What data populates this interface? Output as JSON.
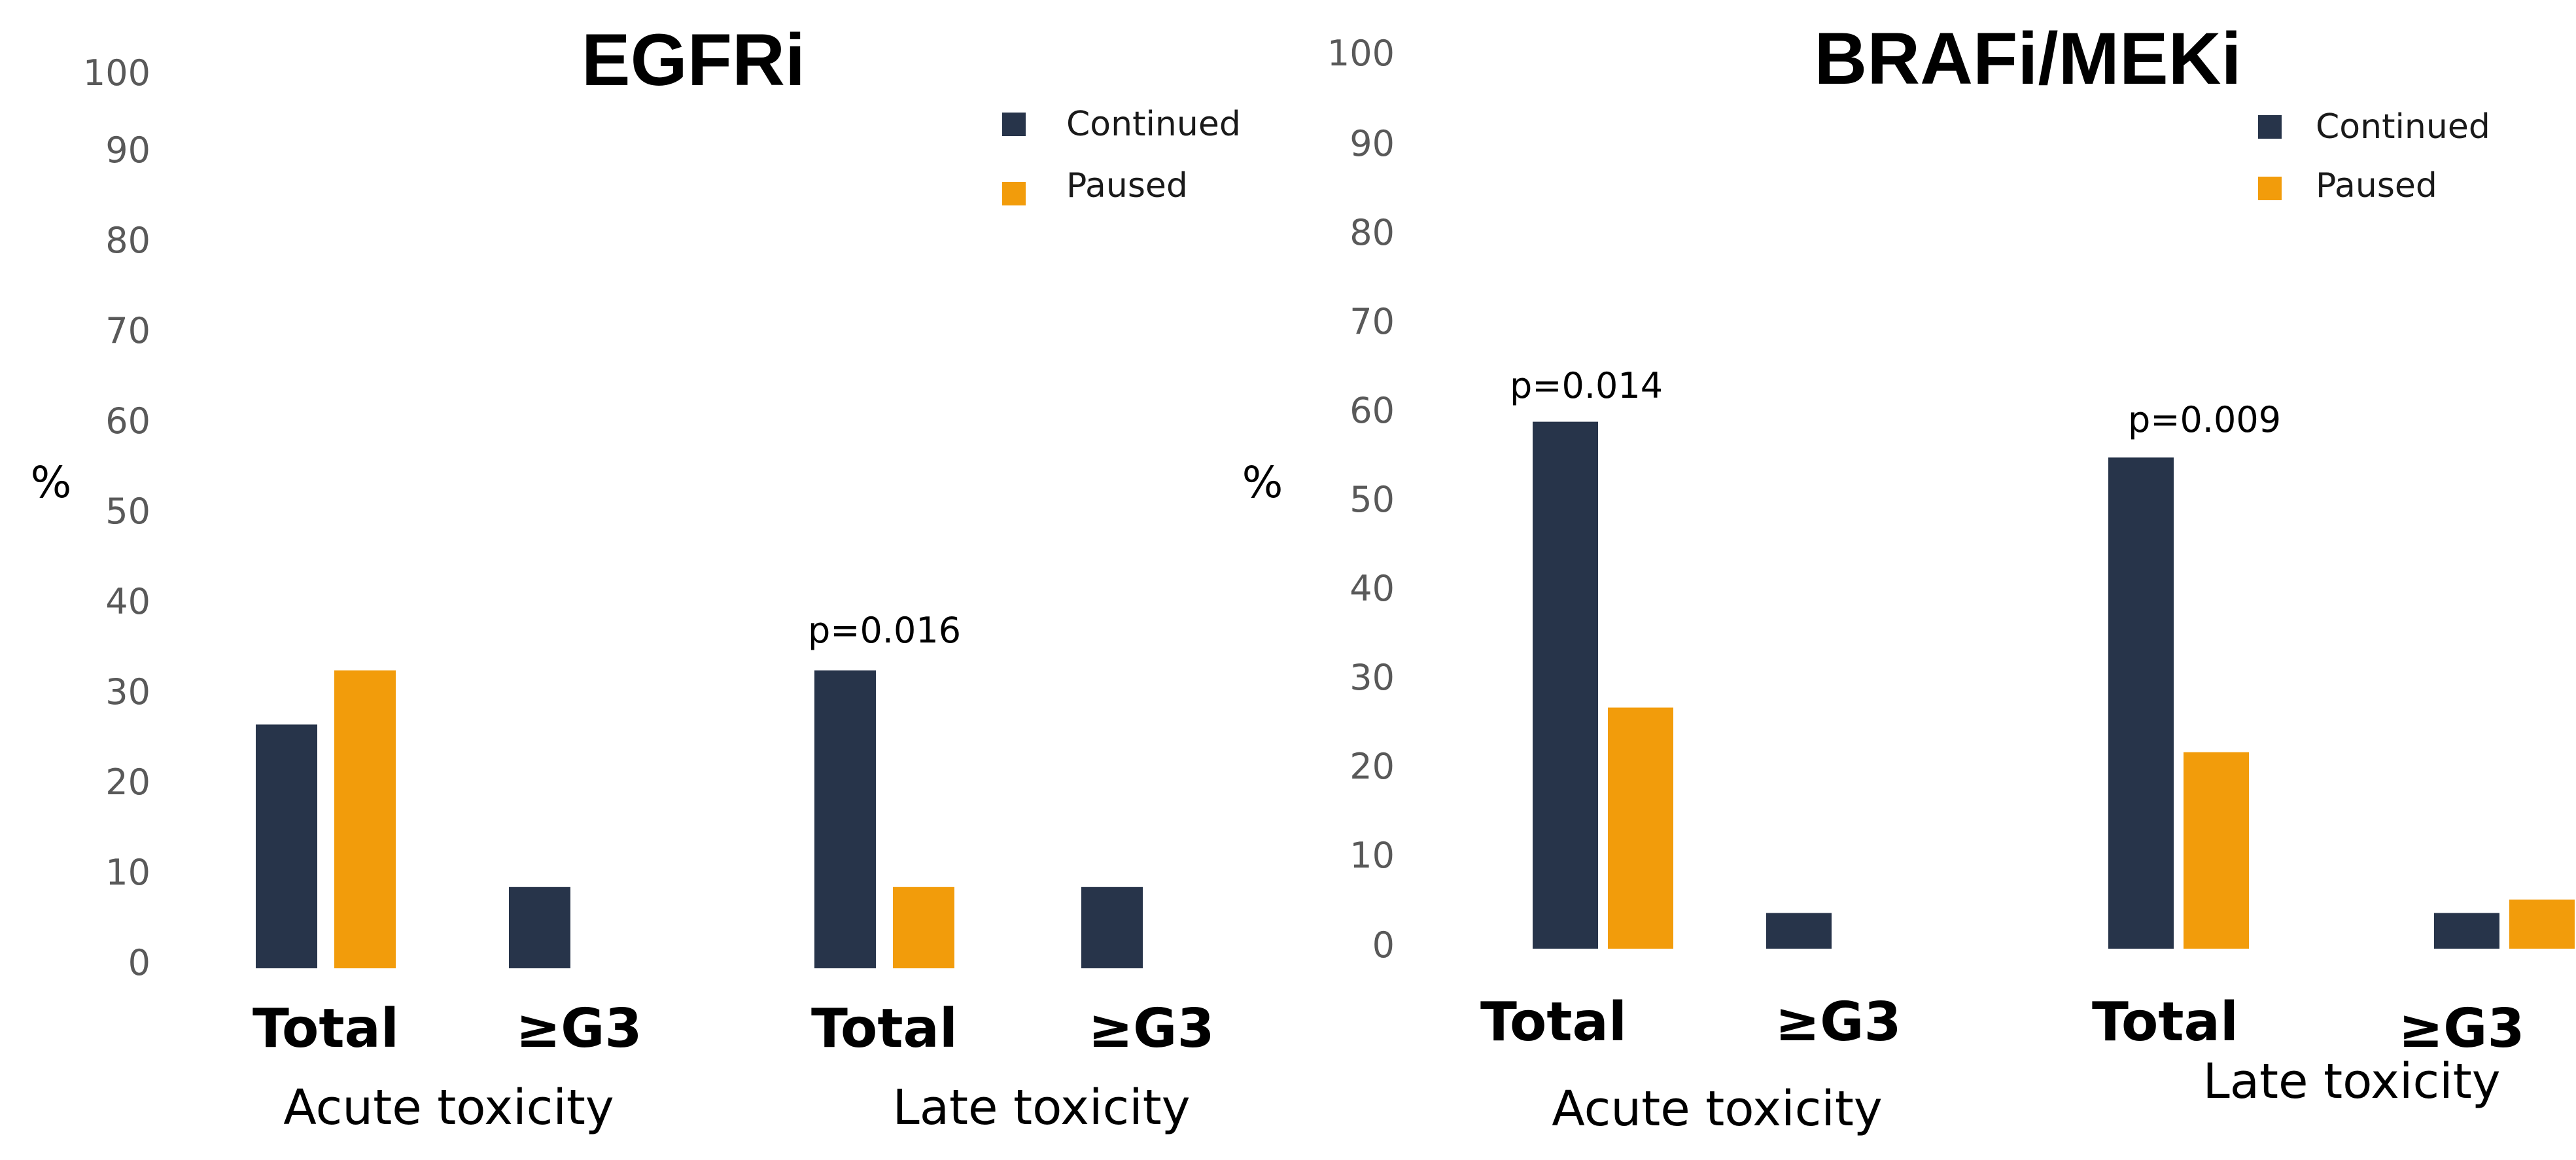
{
  "colors": {
    "continued": "#27344a",
    "paused": "#f29c0b"
  },
  "chart_data": [
    {
      "type": "bar",
      "title": "EGFRi",
      "ylabel": "%",
      "ylim": [
        0,
        100
      ],
      "yticks": [
        "0",
        "10",
        "20",
        "30",
        "40",
        "50",
        "60",
        "70",
        "80",
        "90",
        "100"
      ],
      "categories": [
        "Total",
        "≥G3",
        "Total",
        "≥G3"
      ],
      "groups": [
        "Acute toxicity",
        "Late toxicity"
      ],
      "legend": [
        "Continued",
        "Paused"
      ],
      "series": [
        {
          "name": "Continued",
          "values": [
            27,
            9,
            33,
            9
          ]
        },
        {
          "name": "Paused",
          "values": [
            33,
            0,
            9,
            0
          ]
        }
      ],
      "annotations": [
        {
          "text": "p=0.016",
          "category_index": 2
        }
      ]
    },
    {
      "type": "bar",
      "title": "BRAFi/MEKi",
      "ylabel": "%",
      "ylim": [
        0,
        100
      ],
      "yticks": [
        "0",
        "10",
        "20",
        "30",
        "40",
        "50",
        "60",
        "70",
        "80",
        "90",
        "100"
      ],
      "categories": [
        "Total",
        "≥G3",
        "Total",
        "≥G3"
      ],
      "groups": [
        "Acute toxicity",
        "Late toxicity"
      ],
      "legend": [
        "Continued",
        "Paused"
      ],
      "series": [
        {
          "name": "Continued",
          "values": [
            59,
            4,
            55,
            4
          ]
        },
        {
          "name": "Paused",
          "values": [
            27,
            0,
            22,
            5.5
          ]
        }
      ],
      "annotations": [
        {
          "text": "p=0.014",
          "category_index": 0
        },
        {
          "text": "p=0.009",
          "category_index": 2
        }
      ]
    }
  ]
}
